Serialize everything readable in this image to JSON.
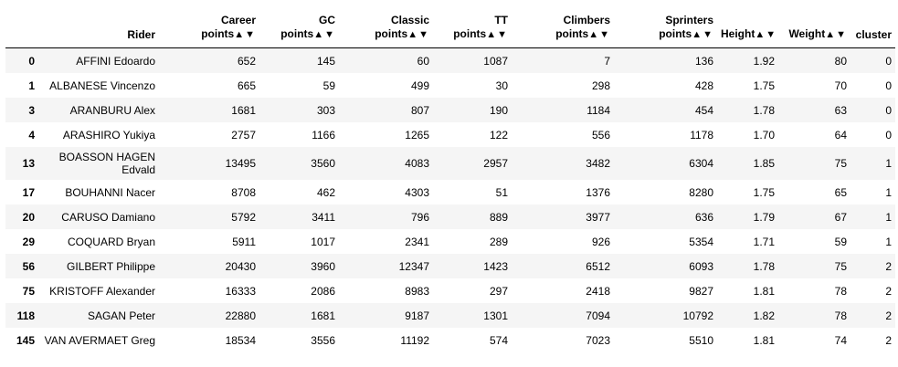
{
  "table": {
    "columns": [
      {
        "line1": "",
        "line2": "Rider",
        "sortable": false
      },
      {
        "line1": "Career",
        "line2": "points",
        "sortable": true
      },
      {
        "line1": "GC",
        "line2": "points",
        "sortable": true
      },
      {
        "line1": "Classic",
        "line2": "points",
        "sortable": true
      },
      {
        "line1": "TT",
        "line2": "points",
        "sortable": true
      },
      {
        "line1": "Climbers",
        "line2": "points",
        "sortable": true
      },
      {
        "line1": "Sprinters",
        "line2": "points",
        "sortable": true
      },
      {
        "line1": "",
        "line2": "Height",
        "sortable": true
      },
      {
        "line1": "",
        "line2": "Weight",
        "sortable": true
      },
      {
        "line1": "",
        "line2": "cluster",
        "sortable": false
      }
    ],
    "sort_up_glyph": "▲",
    "sort_down_glyph": "▼",
    "rows": [
      {
        "index": "0",
        "cells": [
          "AFFINI Edoardo",
          "652",
          "145",
          "60",
          "1087",
          "7",
          "136",
          "1.92",
          "80",
          "0"
        ]
      },
      {
        "index": "1",
        "cells": [
          "ALBANESE Vincenzo",
          "665",
          "59",
          "499",
          "30",
          "298",
          "428",
          "1.75",
          "70",
          "0"
        ]
      },
      {
        "index": "3",
        "cells": [
          "ARANBURU Alex",
          "1681",
          "303",
          "807",
          "190",
          "1184",
          "454",
          "1.78",
          "63",
          "0"
        ]
      },
      {
        "index": "4",
        "cells": [
          "ARASHIRO Yukiya",
          "2757",
          "1166",
          "1265",
          "122",
          "556",
          "1178",
          "1.70",
          "64",
          "0"
        ]
      },
      {
        "index": "13",
        "cells": [
          "BOASSON HAGEN Edvald",
          "13495",
          "3560",
          "4083",
          "2957",
          "3482",
          "6304",
          "1.85",
          "75",
          "1"
        ],
        "tall": true
      },
      {
        "index": "17",
        "cells": [
          "BOUHANNI Nacer",
          "8708",
          "462",
          "4303",
          "51",
          "1376",
          "8280",
          "1.75",
          "65",
          "1"
        ]
      },
      {
        "index": "20",
        "cells": [
          "CARUSO Damiano",
          "5792",
          "3411",
          "796",
          "889",
          "3977",
          "636",
          "1.79",
          "67",
          "1"
        ]
      },
      {
        "index": "29",
        "cells": [
          "COQUARD Bryan",
          "5911",
          "1017",
          "2341",
          "289",
          "926",
          "5354",
          "1.71",
          "59",
          "1"
        ]
      },
      {
        "index": "56",
        "cells": [
          "GILBERT Philippe",
          "20430",
          "3960",
          "12347",
          "1423",
          "6512",
          "6093",
          "1.78",
          "75",
          "2"
        ]
      },
      {
        "index": "75",
        "cells": [
          "KRISTOFF Alexander",
          "16333",
          "2086",
          "8983",
          "297",
          "2418",
          "9827",
          "1.81",
          "78",
          "2"
        ]
      },
      {
        "index": "118",
        "cells": [
          "SAGAN Peter",
          "22880",
          "1681",
          "9187",
          "1301",
          "7094",
          "10792",
          "1.82",
          "78",
          "2"
        ]
      },
      {
        "index": "145",
        "cells": [
          "VAN AVERMAET Greg",
          "18534",
          "3556",
          "11192",
          "574",
          "7023",
          "5510",
          "1.81",
          "74",
          "2"
        ]
      }
    ]
  }
}
